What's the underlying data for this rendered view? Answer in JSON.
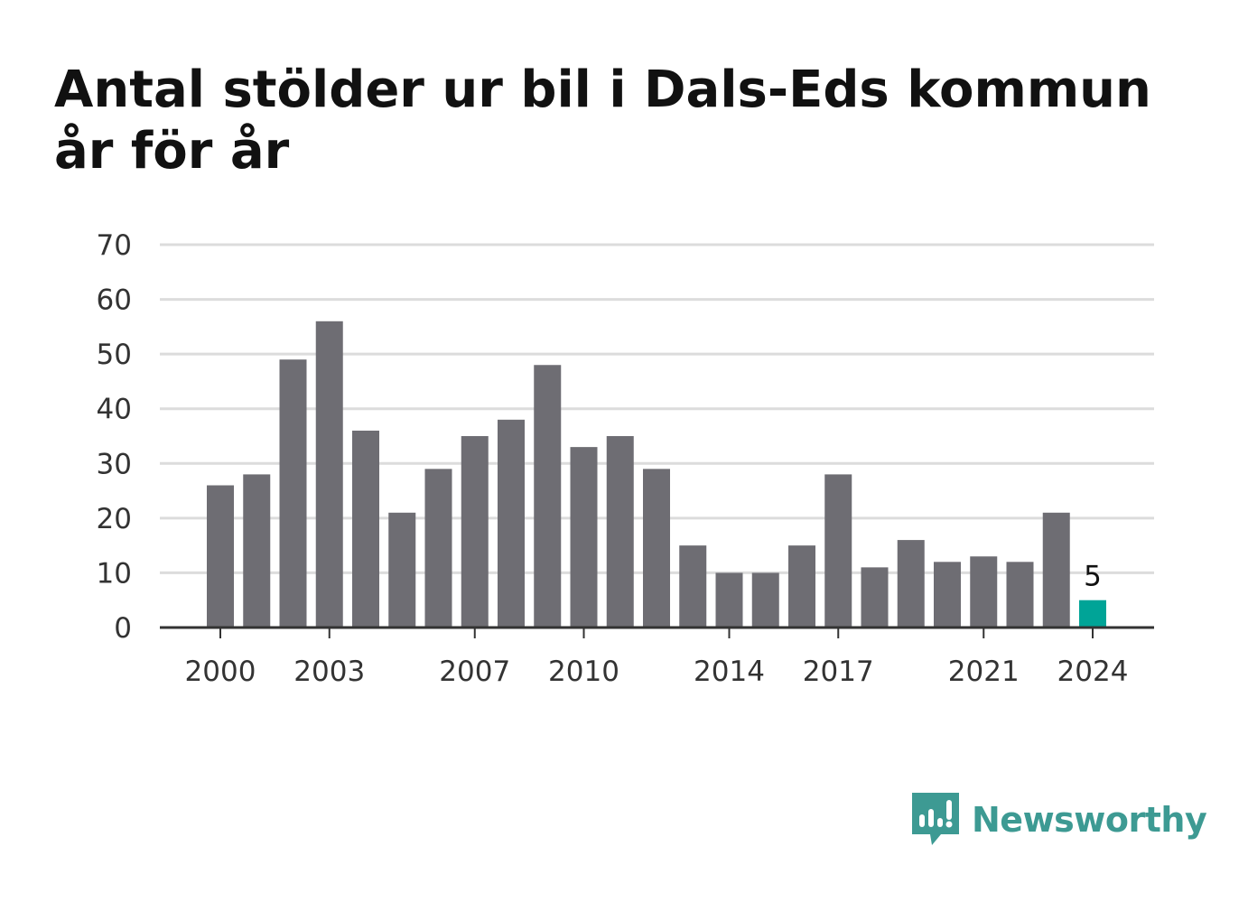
{
  "title": "Antal stölder ur bil i Dals-Eds kommun år för år",
  "brand": {
    "name": "Newsworthy",
    "icon": "newsworthy-logo-icon",
    "color": "#3d9a93"
  },
  "colors": {
    "bar": "#6e6d73",
    "highlight": "#00a497",
    "grid": "#dcdcdc",
    "axis": "#333333"
  },
  "chart_data": {
    "type": "bar",
    "title": "Antal stölder ur bil i Dals-Eds kommun år för år",
    "xlabel": "",
    "ylabel": "",
    "categories": [
      "2000",
      "2001",
      "2002",
      "2003",
      "2004",
      "2005",
      "2006",
      "2007",
      "2008",
      "2009",
      "2010",
      "2011",
      "2012",
      "2013",
      "2014",
      "2015",
      "2016",
      "2017",
      "2018",
      "2019",
      "2020",
      "2021",
      "2022",
      "2023",
      "2024"
    ],
    "values": [
      26,
      28,
      49,
      56,
      36,
      21,
      29,
      35,
      38,
      48,
      33,
      35,
      29,
      15,
      10,
      10,
      15,
      28,
      11,
      16,
      12,
      13,
      12,
      21,
      5
    ],
    "x_tick_labels": [
      "2000",
      "2003",
      "2007",
      "2010",
      "2014",
      "2017",
      "2021",
      "2024"
    ],
    "y_ticks": [
      0,
      10,
      20,
      30,
      40,
      50,
      60,
      70
    ],
    "ylim": [
      0,
      70
    ],
    "grid": true,
    "highlight_category": "2024",
    "data_labels": [
      {
        "category": "2024",
        "text": "5"
      }
    ]
  }
}
